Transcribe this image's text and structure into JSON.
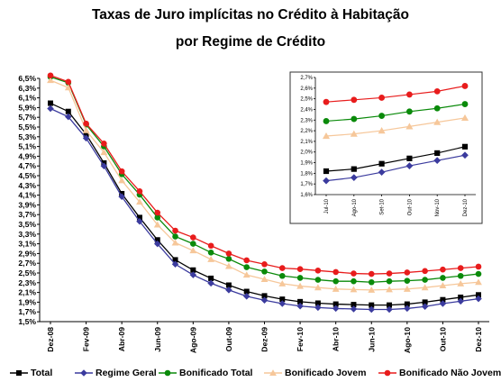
{
  "title_line1": "Taxas de Juro implícitas no Crédito à Habitação",
  "title_line2": "por Regime de Crédito",
  "chart_data": [
    {
      "type": "line",
      "x": [
        "Dez-08",
        "Jan-09",
        "Fev-09",
        "Mar-09",
        "Abr-09",
        "Mai-09",
        "Jun-09",
        "Jul-09",
        "Ago-09",
        "Set-09",
        "Out-09",
        "Nov-09",
        "Dez-09",
        "Jan-10",
        "Fev-10",
        "Mar-10",
        "Abr-10",
        "Mai-10",
        "Jun-10",
        "Jul-10",
        "Ago-10",
        "Set-10",
        "Out-10",
        "Nov-10",
        "Dez-10"
      ],
      "xticks": [
        "Dez-08",
        "Fev-09",
        "Abr-09",
        "Jun-09",
        "Ago-09",
        "Out-09",
        "Dez-09",
        "Fev-10",
        "Abr-10",
        "Jun-10",
        "Ago-10",
        "Out-10",
        "Dez-10"
      ],
      "yticks": [
        "6,5%",
        "6,3%",
        "6,1%",
        "5,9%",
        "5,7%",
        "5,5%",
        "5,3%",
        "5,1%",
        "4,9%",
        "4,7%",
        "4,5%",
        "4,3%",
        "4,1%",
        "3,9%",
        "3,7%",
        "3,5%",
        "3,3%",
        "3,1%",
        "2,9%",
        "2,7%",
        "2,5%",
        "2,3%",
        "2,1%",
        "1,9%",
        "1,7%",
        "1,5%"
      ],
      "ylim": [
        1.5,
        6.5
      ],
      "series": [
        {
          "name": "Total",
          "color": "#000000",
          "marker": "square",
          "values": [
            5.99,
            5.82,
            5.35,
            4.76,
            4.13,
            3.64,
            3.18,
            2.77,
            2.56,
            2.39,
            2.25,
            2.12,
            2.03,
            1.96,
            1.91,
            1.88,
            1.86,
            1.85,
            1.84,
            1.84,
            1.86,
            1.9,
            1.95,
            2.0,
            2.05
          ]
        },
        {
          "name": "Regime Geral",
          "color": "#3b3b9e",
          "marker": "diamond",
          "values": [
            5.88,
            5.71,
            5.27,
            4.7,
            4.07,
            3.56,
            3.1,
            2.68,
            2.46,
            2.29,
            2.15,
            2.02,
            1.94,
            1.87,
            1.82,
            1.79,
            1.77,
            1.76,
            1.75,
            1.75,
            1.77,
            1.81,
            1.87,
            1.92,
            1.97
          ]
        },
        {
          "name": "Bonificado Total",
          "color": "#0a8a0a",
          "marker": "circle",
          "values": [
            6.53,
            6.41,
            5.55,
            5.1,
            4.53,
            4.11,
            3.64,
            3.25,
            3.1,
            2.92,
            2.79,
            2.62,
            2.53,
            2.44,
            2.4,
            2.36,
            2.33,
            2.33,
            2.31,
            2.33,
            2.34,
            2.36,
            2.4,
            2.44,
            2.48
          ]
        },
        {
          "name": "Bonificado Jovem",
          "color": "#f6c79a",
          "marker": "triangle",
          "values": [
            6.46,
            6.31,
            5.43,
            4.98,
            4.4,
            3.96,
            3.49,
            3.12,
            2.96,
            2.78,
            2.64,
            2.46,
            2.37,
            2.28,
            2.23,
            2.2,
            2.17,
            2.16,
            2.15,
            2.16,
            2.17,
            2.2,
            2.24,
            2.28,
            2.31
          ]
        },
        {
          "name": "Bonificado Não Jovem",
          "color": "#e81c1c",
          "marker": "circle",
          "values": [
            6.56,
            6.43,
            5.57,
            5.16,
            4.59,
            4.18,
            3.74,
            3.37,
            3.23,
            3.06,
            2.9,
            2.76,
            2.68,
            2.6,
            2.58,
            2.55,
            2.52,
            2.49,
            2.48,
            2.49,
            2.51,
            2.54,
            2.57,
            2.6,
            2.63
          ]
        }
      ]
    },
    {
      "type": "line",
      "x": [
        "Jul-10",
        "Ago-10",
        "Set-10",
        "Out-10",
        "Nov-10",
        "Dez-10"
      ],
      "yticks": [
        "2,7%",
        "2,6%",
        "2,5%",
        "2,4%",
        "2,3%",
        "2,2%",
        "2,1%",
        "2,0%",
        "1,9%",
        "1,8%",
        "1,7%",
        "1,6%"
      ],
      "ylim": [
        1.6,
        2.7
      ],
      "series": [
        {
          "name": "Total",
          "color": "#000000",
          "marker": "square",
          "values": [
            1.82,
            1.84,
            1.89,
            1.94,
            1.99,
            2.05
          ]
        },
        {
          "name": "Regime Geral",
          "color": "#3b3b9e",
          "marker": "diamond",
          "values": [
            1.73,
            1.76,
            1.81,
            1.87,
            1.92,
            1.97
          ]
        },
        {
          "name": "Bonificado Total",
          "color": "#0a8a0a",
          "marker": "circle",
          "values": [
            2.29,
            2.31,
            2.34,
            2.38,
            2.41,
            2.45
          ]
        },
        {
          "name": "Bonificado Jovem",
          "color": "#f6c79a",
          "marker": "triangle",
          "values": [
            2.15,
            2.17,
            2.2,
            2.24,
            2.28,
            2.32
          ]
        },
        {
          "name": "Bonificado Não Jovem",
          "color": "#e81c1c",
          "marker": "circle",
          "values": [
            2.47,
            2.49,
            2.51,
            2.54,
            2.57,
            2.62
          ]
        }
      ]
    }
  ]
}
